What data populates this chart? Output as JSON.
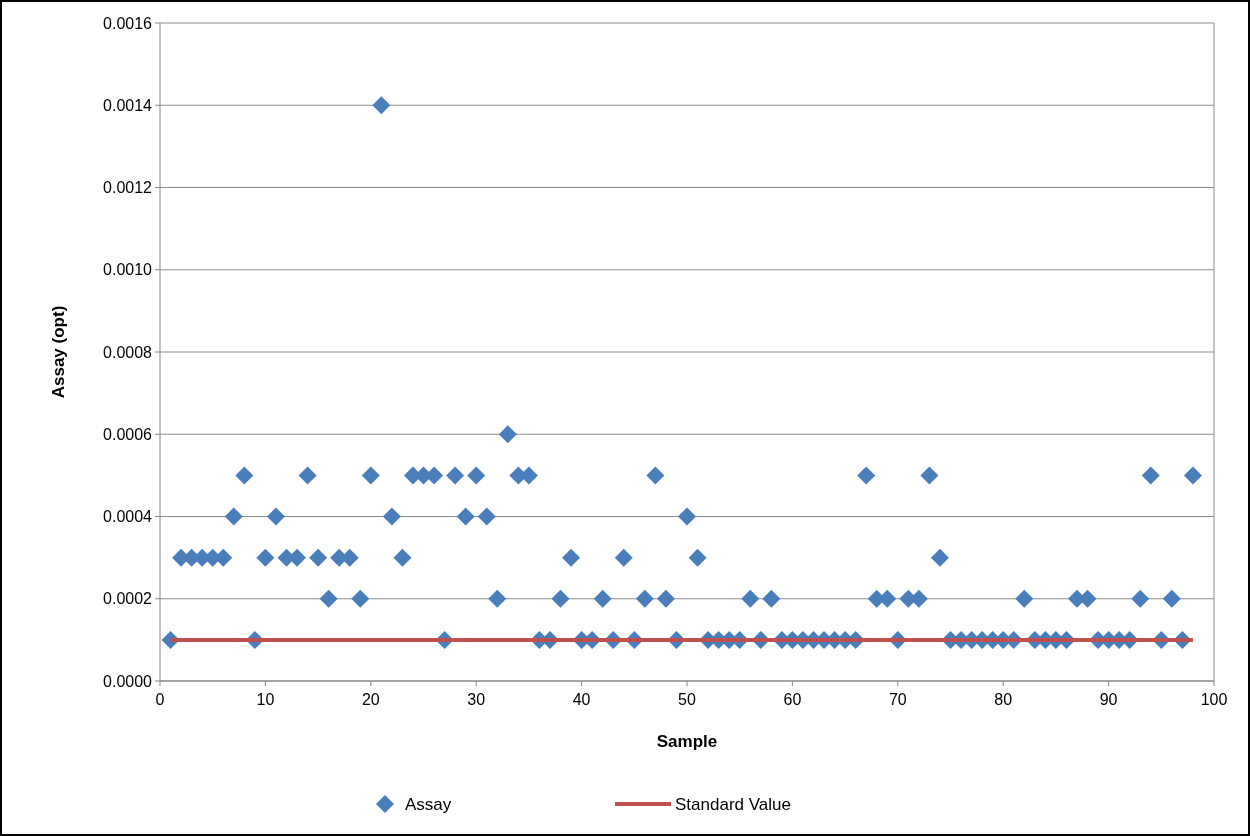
{
  "chart_data": {
    "type": "scatter",
    "xlabel": "Sample",
    "ylabel": "Assay (opt)",
    "xlim": [
      0,
      100
    ],
    "xticks": [
      0,
      10,
      20,
      30,
      40,
      50,
      60,
      70,
      80,
      90,
      100
    ],
    "ylim": [
      0,
      0.0016
    ],
    "yticks": [
      {
        "value": 0,
        "label": "0.0000"
      },
      {
        "value": 0.0002,
        "label": "0.0002"
      },
      {
        "value": 0.0004,
        "label": "0.0004"
      },
      {
        "value": 0.0006,
        "label": "0.0006"
      },
      {
        "value": 0.0008,
        "label": "0.0008"
      },
      {
        "value": 0.001,
        "label": "0.0010"
      },
      {
        "value": 0.0012,
        "label": "0.0012"
      },
      {
        "value": 0.0014,
        "label": "0.0014"
      },
      {
        "value": 0.0016,
        "label": "0.0016"
      }
    ],
    "grid": "y",
    "legend": "bottom",
    "series": [
      {
        "name": "Assay",
        "marker": "diamond",
        "color": "#4a7ebb",
        "x": [
          1,
          2,
          3,
          4,
          5,
          6,
          7,
          8,
          9,
          10,
          11,
          12,
          13,
          14,
          15,
          16,
          17,
          18,
          19,
          20,
          21,
          22,
          23,
          24,
          25,
          26,
          27,
          28,
          29,
          30,
          31,
          32,
          33,
          34,
          35,
          36,
          37,
          38,
          39,
          40,
          41,
          42,
          43,
          44,
          45,
          46,
          47,
          48,
          49,
          50,
          51,
          52,
          53,
          54,
          55,
          56,
          57,
          58,
          59,
          60,
          61,
          62,
          63,
          64,
          65,
          66,
          67,
          68,
          69,
          70,
          71,
          72,
          73,
          74,
          75,
          76,
          77,
          78,
          79,
          80,
          81,
          82,
          83,
          84,
          85,
          86,
          87,
          88,
          89,
          90,
          91,
          92,
          93,
          94,
          95,
          96,
          97,
          98
        ],
        "values": [
          0.0001,
          0.0003,
          0.0003,
          0.0003,
          0.0003,
          0.0003,
          0.0004,
          0.0005,
          0.0001,
          0.0003,
          0.0004,
          0.0003,
          0.0003,
          0.0005,
          0.0003,
          0.0002,
          0.0003,
          0.0003,
          0.0002,
          0.0005,
          0.0014,
          0.0004,
          0.0003,
          0.0005,
          0.0005,
          0.0005,
          0.0001,
          0.0005,
          0.0004,
          0.0005,
          0.0004,
          0.0002,
          0.0006,
          0.0005,
          0.0005,
          0.0001,
          0.0001,
          0.0002,
          0.0003,
          0.0001,
          0.0001,
          0.0002,
          0.0001,
          0.0003,
          0.0001,
          0.0002,
          0.0005,
          0.0002,
          0.0001,
          0.0004,
          0.0003,
          0.0001,
          0.0001,
          0.0001,
          0.0001,
          0.0002,
          0.0001,
          0.0002,
          0.0001,
          0.0001,
          0.0001,
          0.0001,
          0.0001,
          0.0001,
          0.0001,
          0.0001,
          0.0005,
          0.0002,
          0.0002,
          0.0001,
          0.0002,
          0.0002,
          0.0005,
          0.0003,
          0.0001,
          0.0001,
          0.0001,
          0.0001,
          0.0001,
          0.0001,
          0.0001,
          0.0002,
          0.0001,
          0.0001,
          0.0001,
          0.0001,
          0.0002,
          0.0002,
          0.0001,
          0.0001,
          0.0001,
          0.0001,
          0.0002,
          0.0005,
          0.0001,
          0.0002,
          0.0001,
          0.0005
        ]
      },
      {
        "name": "Standard Value",
        "type": "line",
        "marker": "none",
        "line_style": "solid",
        "color": "#c0504d",
        "x": [
          1,
          98
        ],
        "values": [
          0.0001,
          0.0001
        ]
      }
    ]
  }
}
